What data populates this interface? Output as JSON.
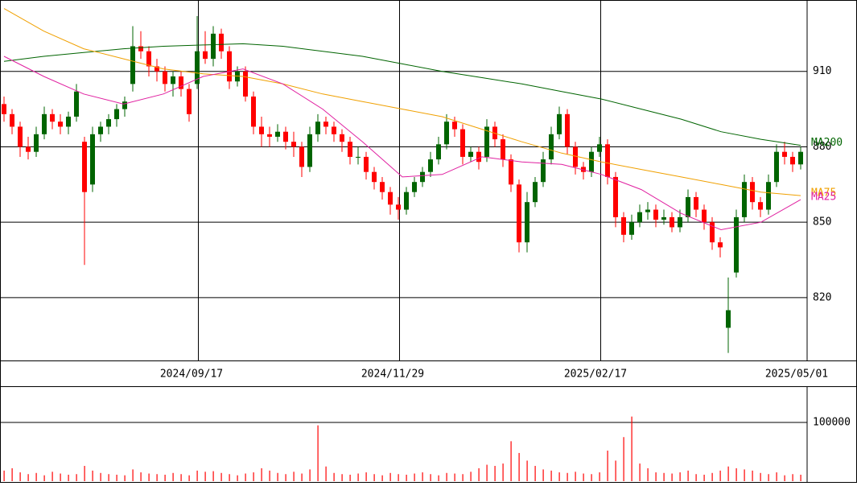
{
  "chart_data": [
    {
      "type": "candlestick",
      "up_color": "#006400",
      "down_color": "#ff0000",
      "grid": true,
      "ylim": [
        795,
        938.4
      ],
      "yticks": [
        820,
        850,
        880,
        910
      ],
      "xtick_labels": [
        "2024/09/17",
        "2024/11/29",
        "2025/02/17",
        "2025/05/01"
      ],
      "ohlc": [
        [
          897,
          900,
          890,
          893
        ],
        [
          893,
          895,
          885,
          888
        ],
        [
          888,
          890,
          876,
          880
        ],
        [
          880,
          884,
          875,
          878
        ],
        [
          878,
          888,
          876,
          885
        ],
        [
          885,
          896,
          883,
          893
        ],
        [
          893,
          895,
          887,
          890
        ],
        [
          890,
          893,
          885,
          888
        ],
        [
          888,
          894,
          885,
          892
        ],
        [
          892,
          905,
          890,
          902
        ],
        [
          882,
          884,
          833,
          862
        ],
        [
          865,
          888,
          862,
          885
        ],
        [
          885,
          890,
          882,
          888
        ],
        [
          888,
          893,
          885,
          891
        ],
        [
          891,
          897,
          888,
          895
        ],
        [
          895,
          900,
          892,
          898
        ],
        [
          905,
          928,
          902,
          920
        ],
        [
          920,
          926,
          915,
          918
        ],
        [
          918,
          920,
          908,
          912
        ],
        [
          912,
          915,
          906,
          910
        ],
        [
          910,
          912,
          902,
          905
        ],
        [
          905,
          910,
          900,
          908
        ],
        [
          908,
          910,
          900,
          903
        ],
        [
          903,
          905,
          890,
          893
        ],
        [
          905,
          932,
          903,
          918
        ],
        [
          918,
          926,
          913,
          915
        ],
        [
          915,
          928,
          912,
          925
        ],
        [
          925,
          927,
          915,
          918
        ],
        [
          918,
          920,
          903,
          906
        ],
        [
          906,
          912,
          904,
          910
        ],
        [
          910,
          912,
          898,
          900
        ],
        [
          900,
          902,
          885,
          888
        ],
        [
          888,
          892,
          880,
          885
        ],
        [
          885,
          888,
          880,
          884
        ],
        [
          884,
          889,
          882,
          886
        ],
        [
          886,
          888,
          879,
          882
        ],
        [
          882,
          886,
          876,
          880
        ],
        [
          880,
          882,
          868,
          872
        ],
        [
          872,
          888,
          870,
          885
        ],
        [
          885,
          893,
          882,
          890
        ],
        [
          890,
          892,
          885,
          888
        ],
        [
          888,
          890,
          882,
          885
        ],
        [
          885,
          887,
          878,
          882
        ],
        [
          882,
          884,
          873,
          876
        ],
        [
          876,
          880,
          873,
          876
        ],
        [
          876,
          878,
          867,
          870
        ],
        [
          870,
          872,
          863,
          866
        ],
        [
          866,
          868,
          859,
          862
        ],
        [
          862,
          864,
          853,
          857
        ],
        [
          857,
          860,
          851,
          855
        ],
        [
          855,
          864,
          853,
          862
        ],
        [
          862,
          868,
          860,
          866
        ],
        [
          866,
          872,
          864,
          870
        ],
        [
          870,
          878,
          868,
          875
        ],
        [
          875,
          884,
          873,
          881
        ],
        [
          881,
          893,
          879,
          890
        ],
        [
          890,
          892,
          884,
          887
        ],
        [
          887,
          889,
          873,
          876
        ],
        [
          876,
          880,
          874,
          878
        ],
        [
          878,
          880,
          871,
          874
        ],
        [
          876,
          891,
          874,
          888
        ],
        [
          888,
          890,
          880,
          883
        ],
        [
          883,
          885,
          872,
          875
        ],
        [
          875,
          877,
          862,
          865
        ],
        [
          865,
          867,
          838,
          842
        ],
        [
          842,
          862,
          838,
          858
        ],
        [
          858,
          868,
          856,
          866
        ],
        [
          866,
          878,
          864,
          875
        ],
        [
          875,
          888,
          873,
          885
        ],
        [
          885,
          896,
          883,
          893
        ],
        [
          893,
          895,
          877,
          880
        ],
        [
          880,
          882,
          869,
          872
        ],
        [
          872,
          874,
          867,
          870
        ],
        [
          870,
          880,
          868,
          878
        ],
        [
          878,
          884,
          876,
          881
        ],
        [
          881,
          883,
          865,
          868
        ],
        [
          868,
          870,
          848,
          852
        ],
        [
          852,
          854,
          842,
          845
        ],
        [
          845,
          853,
          843,
          850
        ],
        [
          850,
          857,
          848,
          854
        ],
        [
          854,
          858,
          851,
          855
        ],
        [
          855,
          857,
          848,
          851
        ],
        [
          851,
          855,
          849,
          852
        ],
        [
          852,
          854,
          846,
          848
        ],
        [
          848,
          855,
          846,
          852
        ],
        [
          852,
          863,
          850,
          860
        ],
        [
          860,
          862,
          852,
          855
        ],
        [
          855,
          857,
          847,
          850
        ],
        [
          850,
          852,
          839,
          842
        ],
        [
          842,
          844,
          836,
          840
        ],
        [
          808,
          828,
          798,
          815
        ],
        [
          830,
          855,
          828,
          852
        ],
        [
          852,
          869,
          850,
          866
        ],
        [
          866,
          868,
          855,
          858
        ],
        [
          858,
          860,
          852,
          855
        ],
        [
          855,
          869,
          853,
          866
        ],
        [
          866,
          881,
          864,
          878
        ],
        [
          878,
          882,
          873,
          876
        ],
        [
          876,
          878,
          870,
          873
        ],
        [
          873,
          880,
          871,
          878
        ]
      ],
      "series": [
        {
          "name": "MA200",
          "color": "#006400",
          "values": [
            914,
            916,
            917.5,
            919,
            920,
            920.5,
            921,
            920,
            918,
            916,
            913,
            910,
            907.5,
            905,
            902,
            899,
            895,
            891,
            886,
            883,
            880.6
          ]
        },
        {
          "name": "MA75",
          "color": "#f0a000",
          "values": [
            935,
            926,
            919,
            915,
            911,
            909,
            908,
            905,
            901,
            898,
            895,
            892,
            887,
            882,
            877.5,
            874,
            871,
            868,
            865,
            862,
            860.6
          ]
        },
        {
          "name": "MA25",
          "color": "#e020a0",
          "values": [
            916,
            908,
            901,
            897,
            901,
            908,
            911,
            905,
            895,
            882,
            868,
            869,
            876,
            874,
            873,
            869,
            863,
            853.5,
            847,
            850,
            859
          ]
        }
      ]
    },
    {
      "type": "bar",
      "color": "#ff0000",
      "ylim": [
        0,
        161600
      ],
      "yticks": [
        100000
      ],
      "grid": true,
      "values": [
        18000,
        22000,
        15000,
        12000,
        14000,
        10000,
        16000,
        13000,
        11000,
        12000,
        26000,
        18000,
        14000,
        12000,
        11000,
        10000,
        20000,
        15000,
        13000,
        12000,
        11000,
        14000,
        12000,
        10000,
        18000,
        16000,
        17000,
        14000,
        12000,
        10000,
        13000,
        15000,
        22000,
        18000,
        14000,
        12000,
        16000,
        13000,
        20000,
        95000,
        25000,
        14000,
        12000,
        11000,
        13000,
        15000,
        12000,
        10000,
        14000,
        12000,
        11000,
        13000,
        15000,
        12000,
        10000,
        14000,
        13000,
        12000,
        16000,
        22000,
        28000,
        26000,
        30000,
        68000,
        48000,
        35000,
        26000,
        20000,
        18000,
        15000,
        14000,
        16000,
        13000,
        12000,
        15000,
        52000,
        35000,
        75000,
        110000,
        30000,
        22000,
        15000,
        14000,
        13000,
        15000,
        18000,
        12000,
        11000,
        14000,
        18000,
        25000,
        22000,
        20000,
        18000,
        14000,
        12000,
        15000,
        10000,
        12000,
        11000
      ]
    }
  ]
}
